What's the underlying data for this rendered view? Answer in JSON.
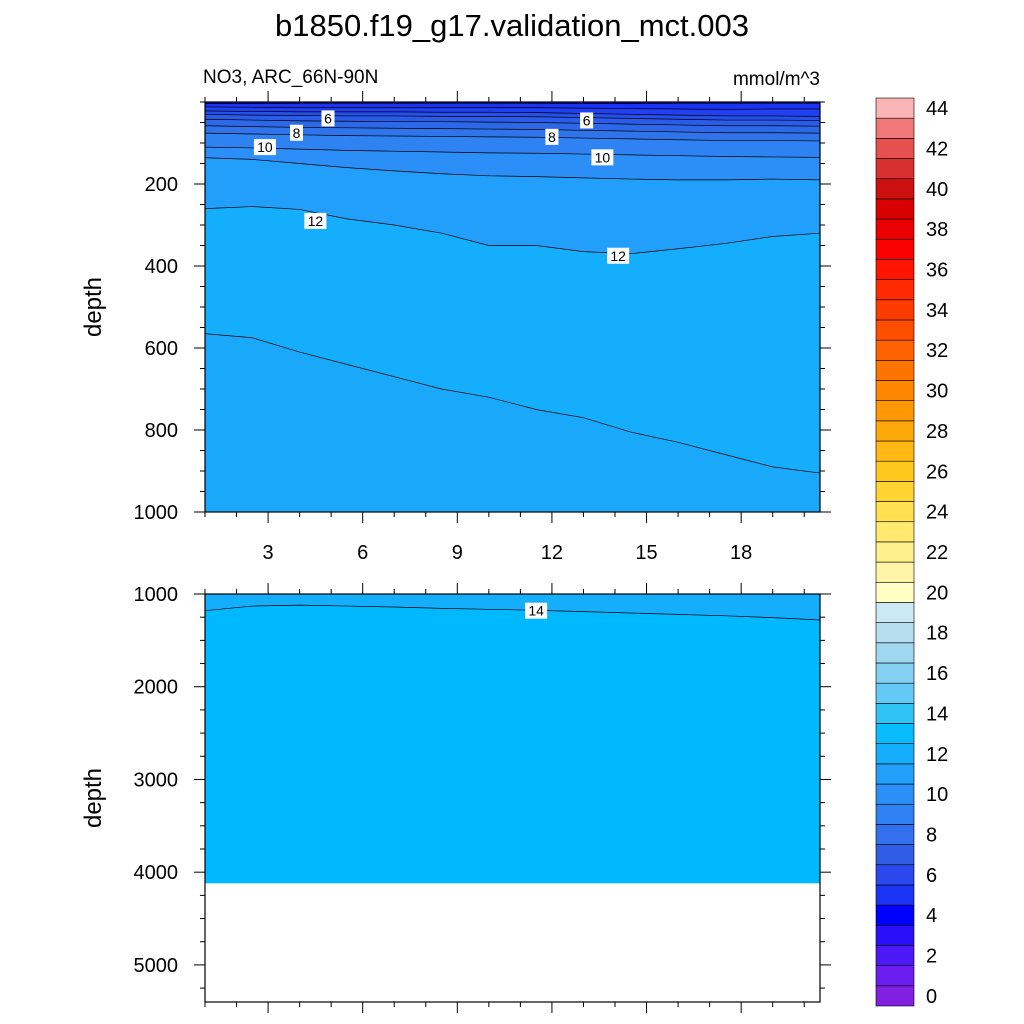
{
  "chart_data": {
    "type": "contour",
    "title": "b1850.f19_g17.validation_mct.003",
    "left_subtitle": "NO3, ARC_66N-90N",
    "right_subtitle": "mmol/m^3",
    "x_range": [
      1,
      20.5
    ],
    "x_ticks": [
      3,
      6,
      9,
      12,
      15,
      18
    ],
    "top_panel": {
      "ylabel": "depth",
      "ylim": [
        0,
        1000
      ],
      "y_ticks": [
        200,
        400,
        600,
        800,
        1000
      ],
      "contour_levels": [
        2,
        4,
        6,
        8,
        10,
        12,
        14
      ],
      "contour_labels": [
        {
          "text": "6",
          "x": 4.9,
          "y": 40
        },
        {
          "text": "8",
          "x": 3.9,
          "y": 75
        },
        {
          "text": "10",
          "x": 2.9,
          "y": 110
        },
        {
          "text": "12",
          "x": 4.5,
          "y": 290
        },
        {
          "text": "6",
          "x": 13.1,
          "y": 45
        },
        {
          "text": "8",
          "x": 12.0,
          "y": 85
        },
        {
          "text": "10",
          "x": 13.6,
          "y": 135
        },
        {
          "text": "12",
          "x": 14.1,
          "y": 375
        }
      ]
    },
    "bottom_panel": {
      "ylabel": "depth",
      "ylim": [
        1000,
        5400
      ],
      "y_ticks": [
        1000,
        2000,
        3000,
        4000,
        5000
      ],
      "data_bottom_depth": 4120,
      "contour_levels": [
        14
      ],
      "contour_labels": [
        {
          "text": "14",
          "x": 11.5,
          "y": 1180
        }
      ]
    },
    "colorbar": {
      "labels": [
        "0",
        "2",
        "4",
        "6",
        "8",
        "10",
        "12",
        "14",
        "16",
        "18",
        "20",
        "22",
        "24",
        "26",
        "28",
        "30",
        "32",
        "34",
        "36",
        "38",
        "40",
        "42",
        "44"
      ],
      "colors": [
        "#8120e0",
        "#6a1ef0",
        "#4c18f6",
        "#2a10fa",
        "#0000ff",
        "#1a33f5",
        "#2a48ee",
        "#305ce6",
        "#3370ef",
        "#2e80f3",
        "#2c8ff7",
        "#229ffa",
        "#14aefc",
        "#08bcfd",
        "#30c4f5",
        "#62caf4",
        "#84d0f1",
        "#a0d6ee",
        "#b6deef",
        "#cce8f4",
        "#ffffc4",
        "#fff4a8",
        "#fff08e",
        "#ffe96e",
        "#ffe050",
        "#ffd430",
        "#ffc81c",
        "#ffb814",
        "#ffa80a",
        "#ff9804",
        "#ff8600",
        "#ff7400",
        "#ff6200",
        "#ff4e00",
        "#ff3c00",
        "#ff2a00",
        "#ff1400",
        "#fa0000",
        "#ea0000",
        "#d80000",
        "#cc1010",
        "#d83030",
        "#e65050",
        "#f07878",
        "#fab4b4"
      ]
    }
  }
}
